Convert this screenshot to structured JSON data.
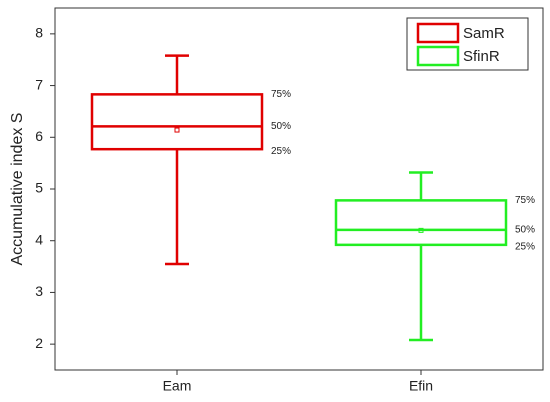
{
  "chart_data": {
    "type": "box",
    "y_label": "Accumulative index S",
    "categories": [
      "Eam",
      "Efin"
    ],
    "series": [
      {
        "name": "SamR",
        "color": "#e00000",
        "min": 3.55,
        "q1": 5.77,
        "median": 6.21,
        "q3": 6.83,
        "max": 7.58,
        "mean": 6.14
      },
      {
        "name": "SfinR",
        "color": "#22ee22",
        "min": 2.08,
        "q1": 3.92,
        "median": 4.21,
        "q3": 4.78,
        "max": 5.32,
        "mean": 4.2
      }
    ],
    "percentile_labels": [
      "75%",
      "50%",
      "25%"
    ],
    "ylim": [
      1.5,
      8.5
    ],
    "yticks": [
      2,
      3,
      4,
      5,
      6,
      7,
      8
    ],
    "grid": false,
    "legend": "top-right"
  }
}
